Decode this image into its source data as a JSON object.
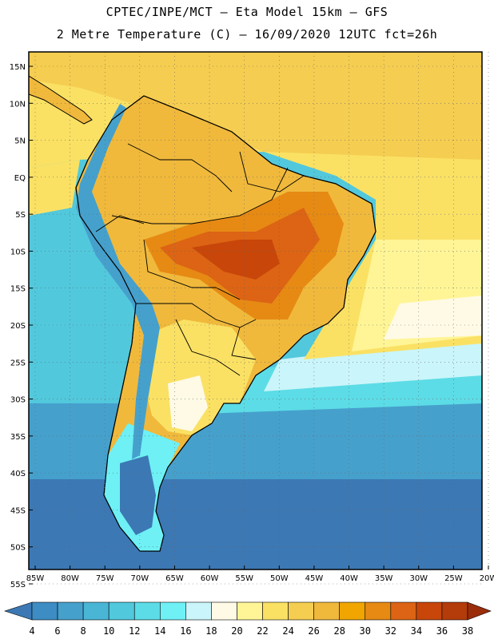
{
  "header": {
    "line1": "CPTEC/INPE/MCT –  Eta Model 15km – GFS",
    "line2": "2 Metre Temperature (C) – 16/09/2020 12UTC fct=26h"
  },
  "map": {
    "lat_labels": [
      "15N",
      "10N",
      "5N",
      "EQ",
      "5S",
      "10S",
      "15S",
      "20S",
      "25S",
      "30S",
      "35S",
      "40S",
      "45S",
      "50S",
      "55S"
    ],
    "lon_labels": [
      "85W",
      "80W",
      "75W",
      "70W",
      "65W",
      "60W",
      "55W",
      "50W",
      "45W",
      "40W",
      "35W",
      "30W",
      "25W",
      "20W"
    ],
    "lat_range": [
      15,
      -55
    ],
    "lon_range": [
      -85,
      -20
    ]
  },
  "colorbar": {
    "labels": [
      "4",
      "6",
      "8",
      "10",
      "12",
      "14",
      "16",
      "18",
      "20",
      "22",
      "24",
      "26",
      "28",
      "30",
      "32",
      "34",
      "36",
      "38"
    ],
    "colors": [
      "#3c78b4",
      "#3d8cc4",
      "#46a0cc",
      "#4ab6d6",
      "#52c8dc",
      "#5cdce6",
      "#6ef0f5",
      "#caf5fa",
      "#fffae6",
      "#fff596",
      "#fae164",
      "#f5cd50",
      "#f0b93c",
      "#f0a500",
      "#e68a14",
      "#dc6414",
      "#c8460a",
      "#b43c0a",
      "#9b2d0a"
    ],
    "unit": "C"
  }
}
